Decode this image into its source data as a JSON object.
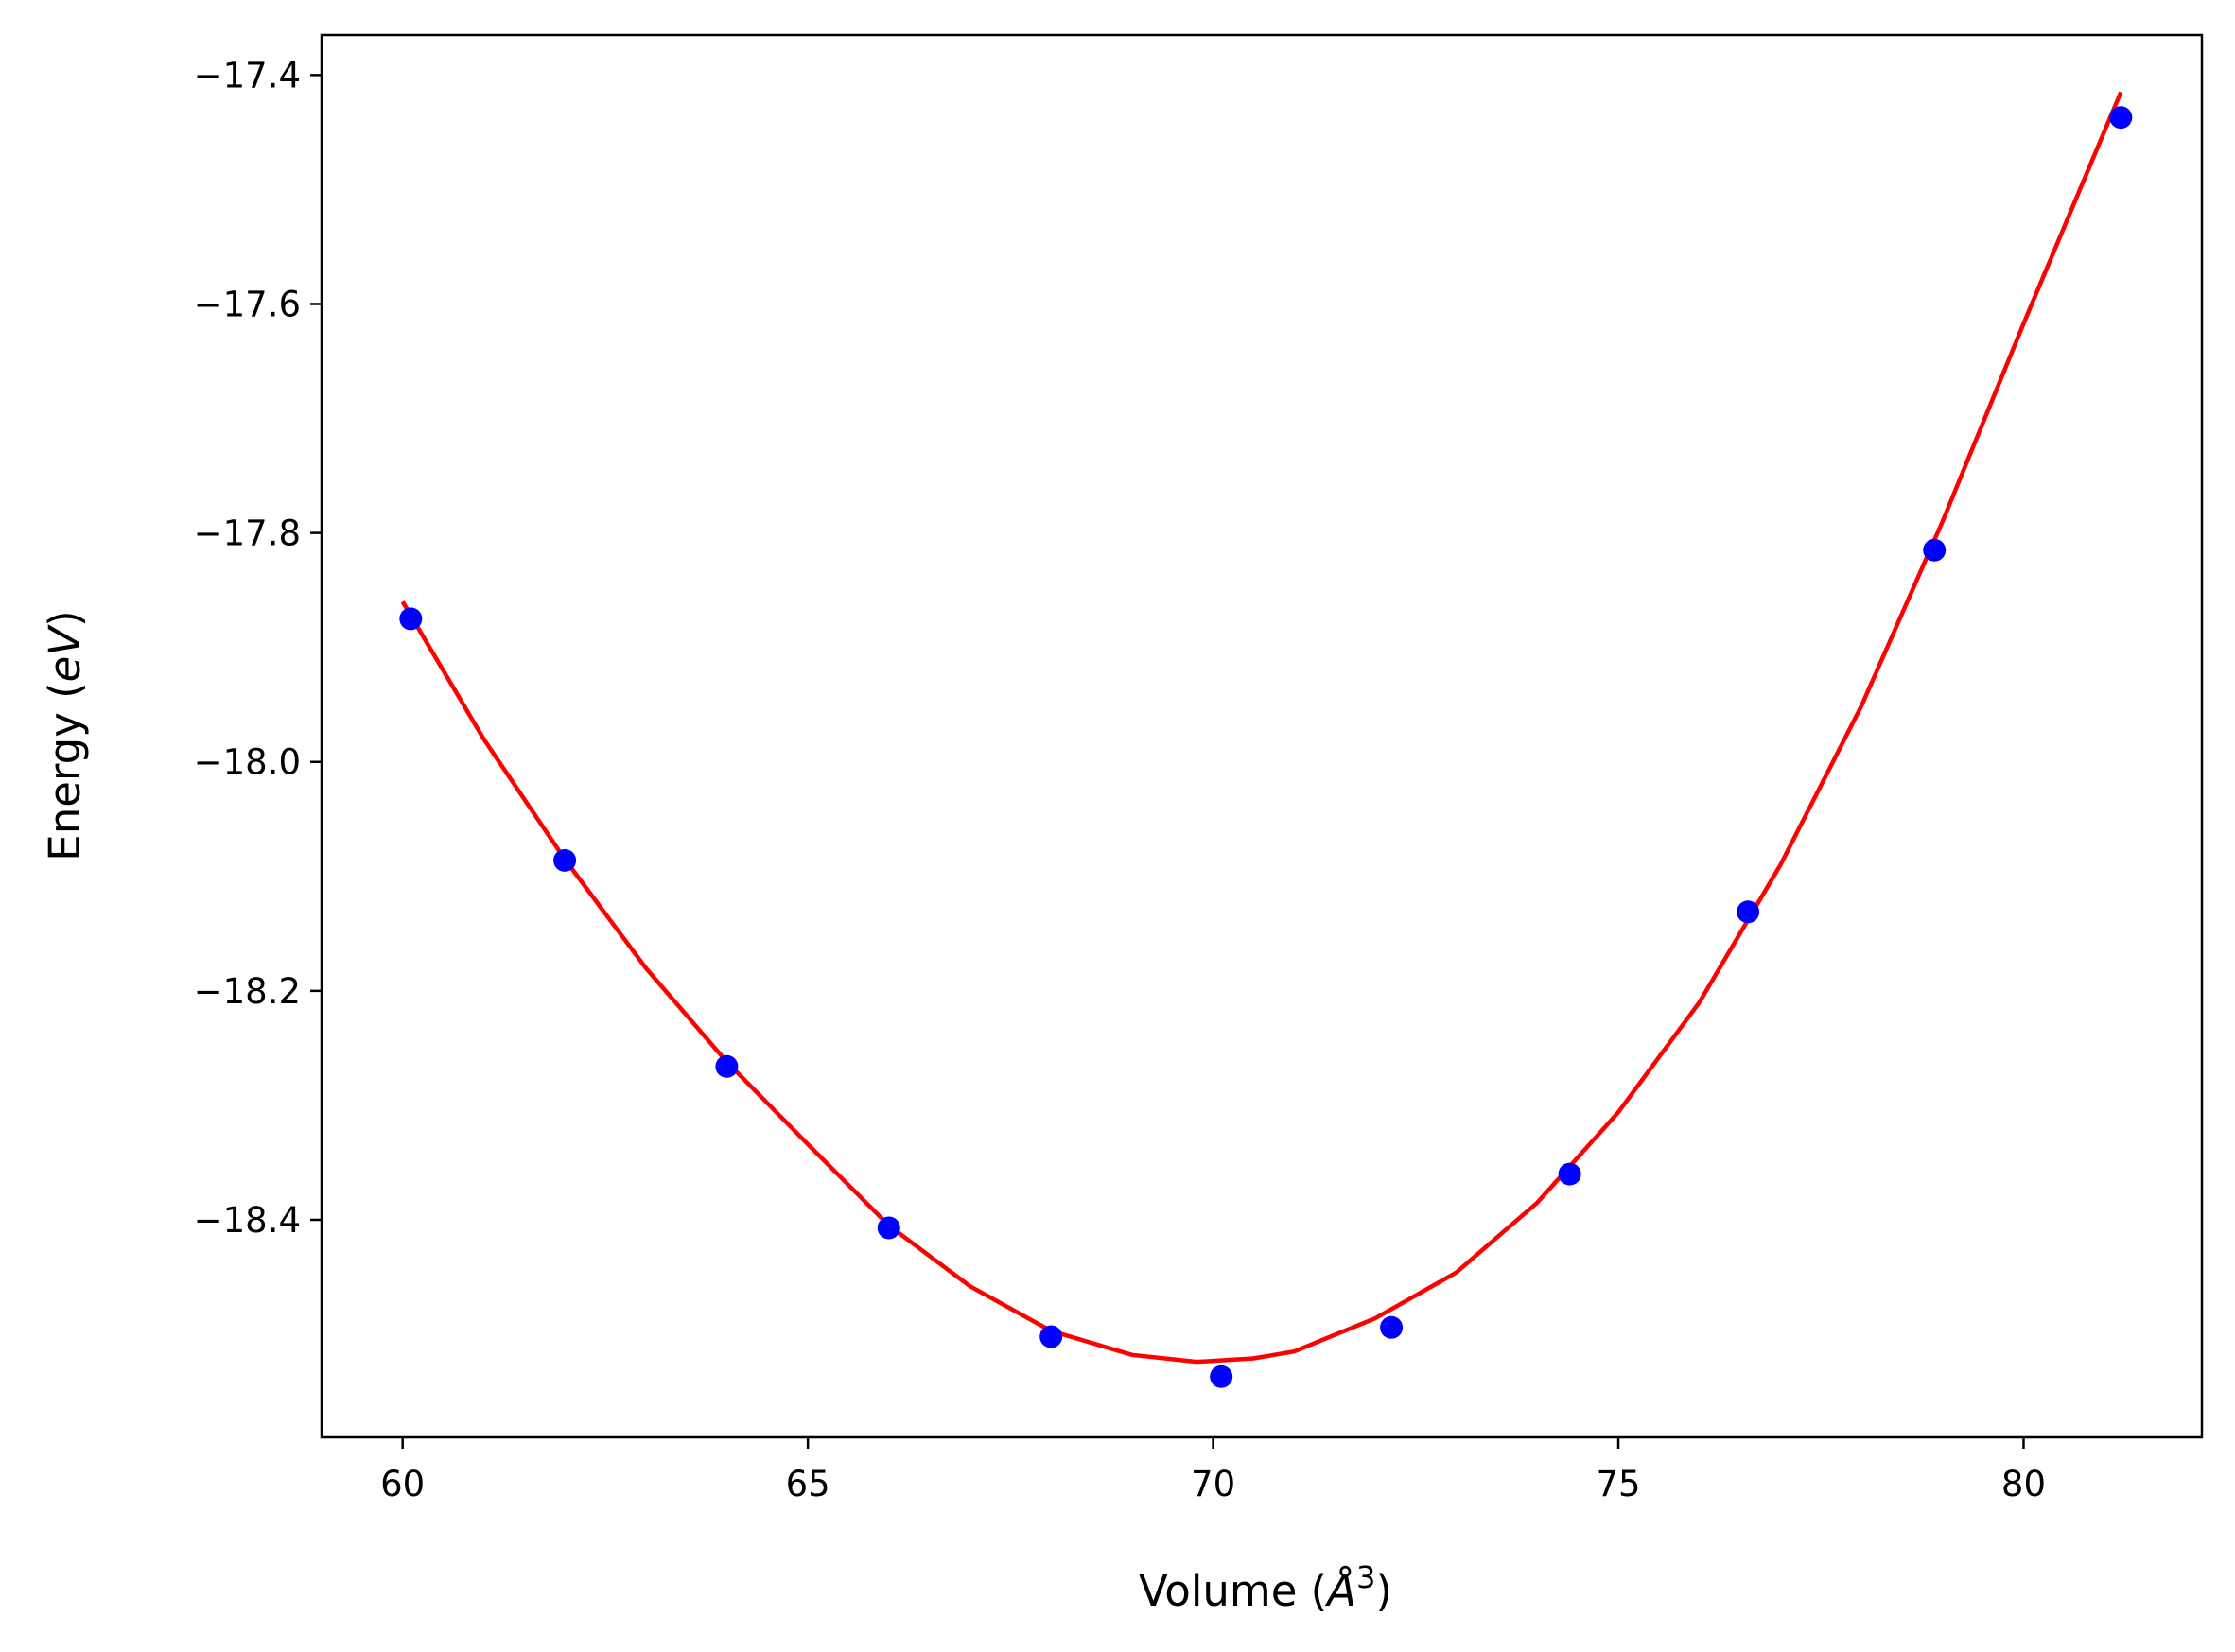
{
  "chart_data": {
    "type": "scatter",
    "title": "",
    "xlabel": {
      "prefix": "Volume (",
      "symbol": "Å",
      "sup": "3",
      "suffix": ")"
    },
    "ylabel": {
      "prefix": "Energy (",
      "symbol": "eV",
      "suffix": ")"
    },
    "xlim": [
      59.0,
      82.2
    ],
    "ylim": [
      -18.59,
      -17.365
    ],
    "grid": false,
    "legend": "none",
    "x_ticks": [
      60,
      65,
      70,
      75,
      80
    ],
    "x_tick_labels": [
      "60",
      "65",
      "70",
      "75",
      "80"
    ],
    "y_ticks": [
      -17.4,
      -17.6,
      -17.8,
      -18.0,
      -18.2,
      -18.4
    ],
    "y_tick_labels": [
      "−17.4",
      "−17.6",
      "−17.8",
      "−18.0",
      "−18.2",
      "−18.4"
    ],
    "series": [
      {
        "kind": "points",
        "color": "#0000ff",
        "x": [
          60.1,
          62.0,
          64.0,
          66.0,
          68.0,
          70.1,
          72.2,
          74.4,
          76.6,
          78.9,
          81.2
        ],
        "y": [
          -17.875,
          -18.086,
          -18.266,
          -18.407,
          -18.502,
          -18.537,
          -18.494,
          -18.36,
          -18.131,
          -17.815,
          -17.437
        ]
      },
      {
        "kind": "fit-curve",
        "color": "#ff0000",
        "x": [
          60.0,
          61.0,
          62.0,
          63.0,
          64.0,
          65.0,
          66.0,
          67.0,
          68.0,
          69.0,
          69.8,
          70.5,
          71.0,
          72.0,
          73.0,
          74.0,
          75.0,
          76.0,
          77.0,
          78.0,
          79.0,
          80.0,
          81.2
        ],
        "y": [
          -17.86,
          -17.98,
          -18.085,
          -18.18,
          -18.262,
          -18.334,
          -18.405,
          -18.458,
          -18.497,
          -18.518,
          -18.524,
          -18.521,
          -18.515,
          -18.486,
          -18.446,
          -18.385,
          -18.306,
          -18.21,
          -18.09,
          -17.951,
          -17.79,
          -17.617,
          -17.415
        ]
      }
    ]
  }
}
